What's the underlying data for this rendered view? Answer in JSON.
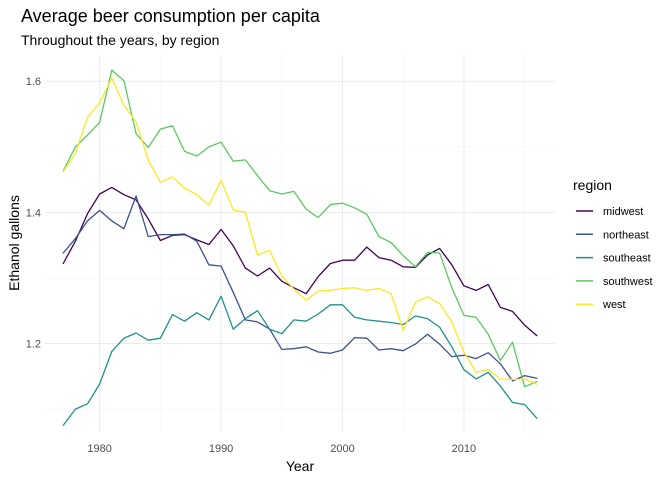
{
  "chart_data": {
    "type": "line",
    "title": "Average beer consumption per capita",
    "subtitle": "Throughout the years, by region",
    "xlabel": "Year",
    "ylabel": "Ethanol gallons",
    "xlim": [
      1975.5,
      2017.5
    ],
    "ylim": [
      1.065,
      1.64
    ],
    "x_ticks": [
      1980,
      1990,
      2000,
      2010
    ],
    "y_ticks": [
      1.2,
      1.4,
      1.6
    ],
    "grid": true,
    "legend": {
      "title": "region",
      "placement": "right"
    },
    "x": [
      1977,
      1978,
      1979,
      1980,
      1981,
      1982,
      1983,
      1984,
      1985,
      1986,
      1987,
      1988,
      1989,
      1990,
      1991,
      1992,
      1993,
      1994,
      1995,
      1996,
      1997,
      1998,
      1999,
      2000,
      2001,
      2002,
      2003,
      2004,
      2005,
      2006,
      2007,
      2008,
      2009,
      2010,
      2011,
      2012,
      2013,
      2014,
      2015,
      2016
    ],
    "series": [
      {
        "name": "midwest",
        "color": "#440154",
        "values": [
          1.322,
          1.356,
          1.398,
          1.428,
          1.438,
          1.427,
          1.419,
          1.39,
          1.357,
          1.365,
          1.366,
          1.358,
          1.351,
          1.374,
          1.349,
          1.315,
          1.303,
          1.315,
          1.295,
          1.285,
          1.276,
          1.302,
          1.322,
          1.327,
          1.327,
          1.347,
          1.331,
          1.327,
          1.317,
          1.316,
          1.335,
          1.345,
          1.32,
          1.288,
          1.281,
          1.29,
          1.255,
          1.249,
          1.228,
          1.212
        ]
      },
      {
        "name": "northeast",
        "color": "#3B528B",
        "values": [
          1.338,
          1.36,
          1.387,
          1.403,
          1.387,
          1.375,
          1.425,
          1.363,
          1.366,
          1.366,
          1.367,
          1.356,
          1.32,
          1.318,
          1.278,
          1.236,
          1.233,
          1.222,
          1.191,
          1.192,
          1.195,
          1.187,
          1.185,
          1.19,
          1.209,
          1.208,
          1.19,
          1.192,
          1.189,
          1.199,
          1.214,
          1.199,
          1.18,
          1.182,
          1.177,
          1.186,
          1.169,
          1.143,
          1.151,
          1.147
        ]
      },
      {
        "name": "southeast",
        "color": "#21908C",
        "values": [
          1.075,
          1.1,
          1.108,
          1.138,
          1.188,
          1.208,
          1.216,
          1.205,
          1.208,
          1.244,
          1.234,
          1.247,
          1.236,
          1.272,
          1.222,
          1.238,
          1.25,
          1.222,
          1.215,
          1.236,
          1.234,
          1.245,
          1.259,
          1.259,
          1.24,
          1.236,
          1.234,
          1.232,
          1.229,
          1.242,
          1.238,
          1.225,
          1.195,
          1.16,
          1.146,
          1.156,
          1.135,
          1.11,
          1.107,
          1.086
        ]
      },
      {
        "name": "southwest",
        "color": "#5DC863",
        "values": [
          1.463,
          1.5,
          1.518,
          1.537,
          1.617,
          1.601,
          1.52,
          1.499,
          1.527,
          1.532,
          1.493,
          1.486,
          1.5,
          1.507,
          1.478,
          1.48,
          1.456,
          1.433,
          1.428,
          1.432,
          1.405,
          1.392,
          1.412,
          1.414,
          1.407,
          1.397,
          1.363,
          1.354,
          1.334,
          1.317,
          1.339,
          1.338,
          1.285,
          1.243,
          1.24,
          1.214,
          1.174,
          1.202,
          1.134,
          1.142
        ]
      },
      {
        "name": "west",
        "color": "#FDE725",
        "values": [
          1.462,
          1.49,
          1.545,
          1.567,
          1.605,
          1.563,
          1.538,
          1.48,
          1.446,
          1.454,
          1.437,
          1.427,
          1.411,
          1.449,
          1.404,
          1.4,
          1.335,
          1.342,
          1.303,
          1.283,
          1.266,
          1.28,
          1.281,
          1.284,
          1.285,
          1.281,
          1.284,
          1.276,
          1.22,
          1.263,
          1.271,
          1.261,
          1.233,
          1.187,
          1.156,
          1.16,
          1.146,
          1.145,
          1.146,
          1.138
        ]
      }
    ]
  }
}
